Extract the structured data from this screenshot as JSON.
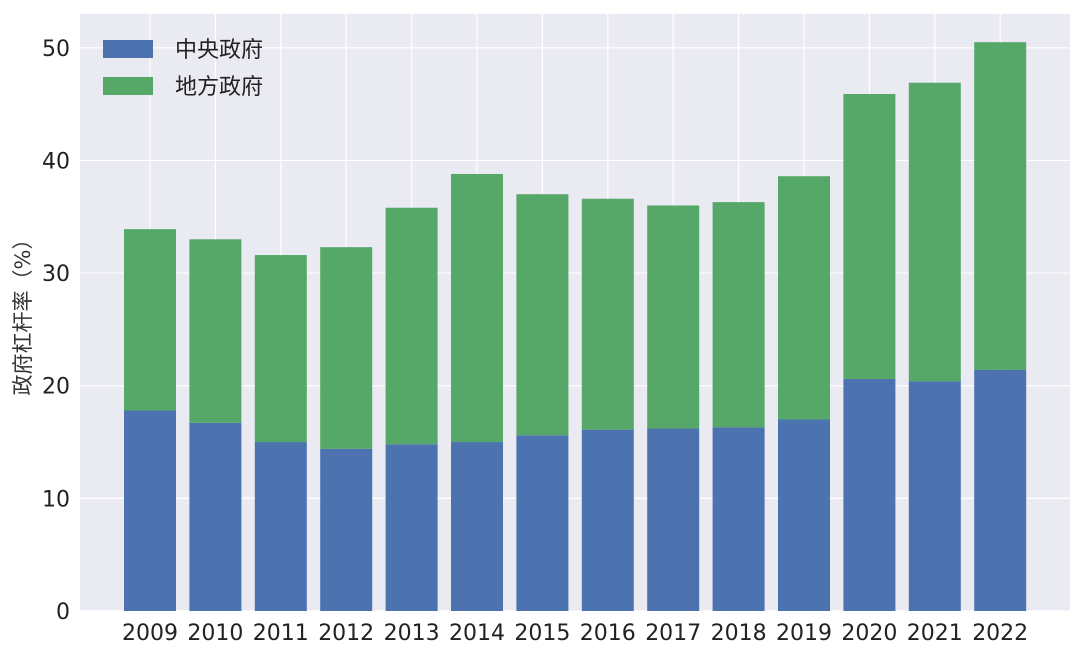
{
  "chart_data": {
    "type": "bar",
    "stacked": true,
    "title": "",
    "xlabel": "",
    "ylabel": "政府杠杆率（%）",
    "categories": [
      "2009",
      "2010",
      "2011",
      "2012",
      "2013",
      "2014",
      "2015",
      "2016",
      "2017",
      "2018",
      "2019",
      "2020",
      "2021",
      "2022"
    ],
    "series": [
      {
        "name": "中央政府",
        "color": "#4c72b0",
        "values": [
          17.8,
          16.7,
          15.0,
          14.4,
          14.8,
          15.0,
          15.6,
          16.1,
          16.2,
          16.3,
          17.0,
          20.6,
          20.4,
          21.4
        ]
      },
      {
        "name": "地方政府",
        "color": "#55a868",
        "values": [
          16.1,
          16.3,
          16.6,
          17.9,
          21.0,
          23.8,
          21.4,
          20.5,
          19.8,
          20.0,
          21.6,
          25.3,
          26.5,
          29.1
        ]
      }
    ],
    "ylim": [
      0,
      53
    ],
    "yticks": [
      0,
      10,
      20,
      30,
      40,
      50
    ],
    "grid": true,
    "legend_position": "top-left",
    "background_color": "#eaeaf2"
  }
}
